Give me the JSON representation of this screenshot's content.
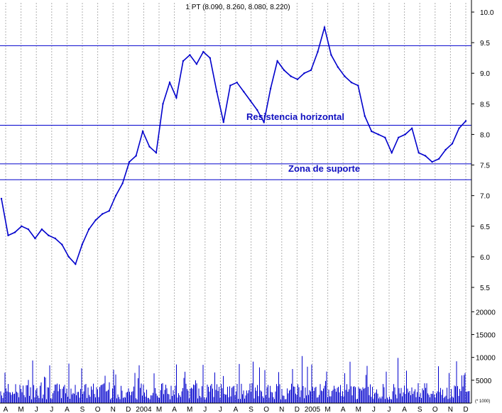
{
  "chart_data": {
    "type": "line",
    "title": "1 PT (8.090, 8.260, 8.080, 8.220)",
    "price": {
      "ylim": [
        5.0,
        10.0
      ],
      "y_ticks": [
        "5.5",
        "6.0",
        "6.5",
        "7.0",
        "7.5",
        "8.0",
        "8.5",
        "9.0",
        "9.5",
        "10.0"
      ],
      "series": [
        {
          "values": [
            6.95,
            6.35,
            6.4,
            6.5,
            6.45,
            6.3,
            6.45,
            6.35,
            6.3,
            6.2,
            6.0,
            5.88,
            6.2,
            6.45,
            6.6,
            6.7,
            6.75,
            7.0,
            7.2,
            7.55,
            7.65,
            8.05,
            7.8,
            7.7,
            8.5,
            8.85,
            8.6,
            9.2,
            9.3,
            9.15,
            9.35,
            9.25,
            8.7,
            8.2,
            8.8,
            8.85,
            8.7,
            8.55,
            8.4,
            8.2,
            8.75,
            9.2,
            9.05,
            8.95,
            8.9,
            9.0,
            9.05,
            9.35,
            9.75,
            9.3,
            9.1,
            8.95,
            8.85,
            8.8,
            8.3,
            8.05,
            8.0,
            7.95,
            7.7,
            7.95,
            8.0,
            8.1,
            7.7,
            7.65,
            7.55,
            7.6,
            7.75,
            7.85,
            8.1,
            8.22
          ]
        }
      ],
      "annotations": [
        {
          "text": "Resistencia horizontal"
        },
        {
          "text": "Zona de suporte"
        }
      ],
      "horizontal_lines": [
        9.45,
        8.15,
        7.52,
        7.26
      ]
    },
    "volume": {
      "unit_label": "(* 1000)",
      "y_ticks": [
        "5000",
        "10000",
        "15000",
        "20000"
      ],
      "ylim": [
        0,
        23000
      ]
    },
    "x_tick_labels": [
      "A",
      "M",
      "J",
      "J",
      "A",
      "S",
      "O",
      "N",
      "D",
      "2004",
      "M",
      "A",
      "M",
      "J",
      "J",
      "A",
      "S",
      "O",
      "N",
      "D",
      "2005",
      "M",
      "A",
      "M",
      "J",
      "J",
      "A",
      "S",
      "O",
      "N",
      "D"
    ],
    "grid": "vertical dashed"
  },
  "colors": {
    "series": "#0000cc",
    "lines": "#0000cc",
    "grid": "#b0b0b0",
    "text": "#000000",
    "annotation": "#1010c0"
  }
}
